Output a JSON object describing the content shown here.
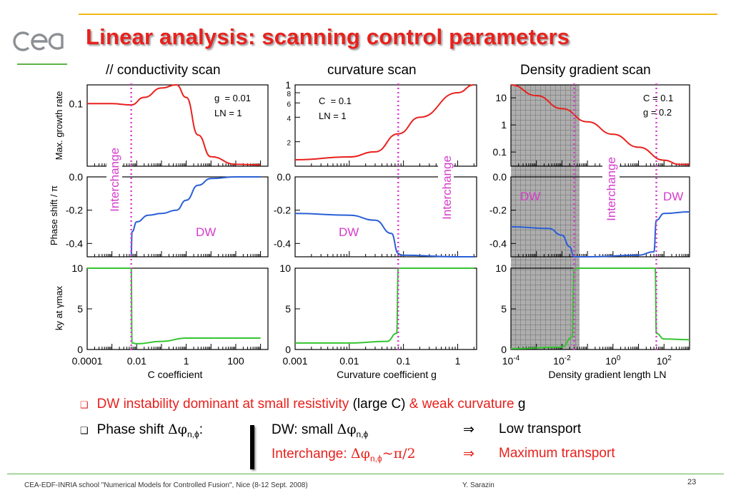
{
  "slide": {
    "title": "Linear analysis: scanning control parameters",
    "logo_text": "cea",
    "accent_color": "#f2b818",
    "logo_color": "#8c8f93",
    "green_rule_color": "#5cb347"
  },
  "columns": [
    {
      "title": "// conductivity scan"
    },
    {
      "title": "curvature scan"
    },
    {
      "title": "Density gradient scan"
    }
  ],
  "row_labels": [
    "Max. growth rate",
    "Phase shift / π",
    "ky at γmax"
  ],
  "xlabels": [
    "C coefficient",
    "Curvature coefficient g",
    "Density gradient length LN"
  ],
  "annotations": {
    "conductivity": {
      "params": [
        "g  = 0.01",
        "LN = 1"
      ],
      "regime_left": "Interchange",
      "regime_right": "DW"
    },
    "curvature": {
      "params": [
        "C  = 0.1",
        "LN = 1"
      ],
      "regime_left": "DW",
      "regime_right": "Interchange"
    },
    "density": {
      "params": [
        "C = 0.1",
        "g = 0.2"
      ],
      "regime_left": "DW",
      "regime_mid": "Interchange",
      "regime_right": "DW"
    }
  },
  "chart_data": [
    {
      "type": "line",
      "title": "// conductivity scan",
      "xlabel": "C coefficient",
      "xscale": "log",
      "xticks": [
        "0.0001",
        "0.01",
        "1",
        "100"
      ],
      "threshold_x": 0.006,
      "panels": [
        {
          "ylabel": "Max. growth rate",
          "color": "#e8211d",
          "yticks": [
            "0.1"
          ],
          "ylim": [
            0,
            0.13
          ],
          "x": [
            0.0001,
            0.001,
            0.006,
            0.02,
            0.1,
            0.4,
            1,
            3,
            10,
            100,
            1000
          ],
          "y": [
            0.1,
            0.1,
            0.098,
            0.11,
            0.125,
            0.13,
            0.11,
            0.05,
            0.015,
            0.003,
            0.002
          ]
        },
        {
          "ylabel": "Phase shift / π",
          "color": "#2a5fd6",
          "yticks": [
            "0.0",
            "-0.2",
            "-0.4"
          ],
          "ylim": [
            -0.48,
            0
          ],
          "x": [
            0.006,
            0.0065,
            0.01,
            0.03,
            0.1,
            0.4,
            1,
            3,
            10,
            100,
            1000
          ],
          "y": [
            -0.47,
            -0.33,
            -0.27,
            -0.23,
            -0.22,
            -0.2,
            -0.14,
            -0.05,
            -0.01,
            0.0,
            0.0
          ]
        },
        {
          "ylabel": "ky at γmax",
          "color": "#35c431",
          "yticks": [
            "10",
            "5",
            "0"
          ],
          "ylim": [
            0,
            10
          ],
          "x": [
            0.0001,
            0.005,
            0.006,
            0.0065,
            0.01,
            0.1,
            1,
            10,
            100,
            1000
          ],
          "y": [
            10,
            10,
            10,
            0.8,
            0.7,
            1.0,
            1.4,
            1.4,
            1.4,
            1.4
          ]
        }
      ]
    },
    {
      "type": "line",
      "title": "curvature scan",
      "xlabel": "Curvature coefficient g",
      "xscale": "log",
      "xticks": [
        "0.001",
        "0.01",
        "0.1",
        "1"
      ],
      "threshold_x": 0.08,
      "panels": [
        {
          "ylabel": "",
          "color": "#e8211d",
          "yticks": [
            "1",
            "8",
            "6",
            "4",
            "2"
          ],
          "ylim": [
            0.1,
            1
          ],
          "x": [
            0.001,
            0.01,
            0.03,
            0.08,
            0.2,
            1,
            2
          ],
          "y": [
            0.12,
            0.13,
            0.15,
            0.25,
            0.4,
            0.8,
            1.0
          ]
        },
        {
          "ylabel": "",
          "color": "#2a5fd6",
          "yticks": [
            "0.0",
            "-0.2",
            "-0.4"
          ],
          "ylim": [
            -0.48,
            0
          ],
          "x": [
            0.001,
            0.01,
            0.03,
            0.06,
            0.08,
            0.09,
            1,
            2
          ],
          "y": [
            -0.22,
            -0.23,
            -0.26,
            -0.34,
            -0.46,
            -0.47,
            -0.48,
            -0.48
          ]
        },
        {
          "ylabel": "",
          "color": "#35c431",
          "yticks": [
            "10",
            "5",
            "0"
          ],
          "ylim": [
            0,
            10
          ],
          "x": [
            0.001,
            0.01,
            0.05,
            0.075,
            0.08,
            0.085,
            1,
            2
          ],
          "y": [
            0.8,
            0.8,
            1.0,
            2.0,
            10,
            10,
            10,
            10
          ]
        }
      ]
    },
    {
      "type": "line",
      "title": "Density gradient scan",
      "xlabel": "Density gradient length LN",
      "xscale": "log",
      "xticks": [
        "10-4",
        "10-2",
        "100",
        "102"
      ],
      "threshold_x": [
        0.03,
        50
      ],
      "panels": [
        {
          "ylabel": "",
          "color": "#e8211d",
          "yticks": [
            "10",
            "1",
            "0.1"
          ],
          "ylim": [
            0.03,
            30
          ],
          "x": [
            0.0001,
            0.001,
            0.01,
            0.1,
            1,
            10,
            100,
            400,
            1000
          ],
          "y": [
            30,
            12,
            4,
            1.3,
            0.45,
            0.15,
            0.05,
            0.035,
            0.035
          ]
        },
        {
          "ylabel": "",
          "color": "#2a5fd6",
          "yticks": [
            "0.0",
            "-0.2",
            "-0.4"
          ],
          "ylim": [
            -0.48,
            0
          ],
          "x": [
            0.0001,
            0.003,
            0.01,
            0.02,
            0.03,
            0.1,
            10,
            40,
            50,
            100,
            1000
          ],
          "y": [
            -0.3,
            -0.31,
            -0.35,
            -0.42,
            -0.48,
            -0.48,
            -0.47,
            -0.45,
            -0.26,
            -0.22,
            -0.21
          ]
        },
        {
          "ylabel": "",
          "color": "#35c431",
          "yticks": [
            "10",
            "5",
            "0"
          ],
          "ylim": [
            0,
            10
          ],
          "x": [
            0.0001,
            0.01,
            0.025,
            0.03,
            0.032,
            40,
            45,
            50,
            100,
            1000
          ],
          "y": [
            0.1,
            0.3,
            1.5,
            10,
            10,
            10,
            10,
            2.0,
            1.3,
            1.2
          ]
        }
      ]
    }
  ],
  "bullets": {
    "b1": {
      "part1": "DW instability dominant at small resistivity",
      "part2": " (large C) ",
      "part3": "& weak curvature",
      "part4": " g"
    },
    "b2": {
      "label": "Phase shift",
      "phi": "Δφ",
      "sub": "n,ϕ",
      "colon": ":"
    },
    "dw_row": {
      "label": "DW: small ",
      "phi": "Δφ",
      "sub": "n,ϕ",
      "arrow": "⇒",
      "result": "Low transport"
    },
    "ic_row": {
      "label": "Interchange: ",
      "phi": "Δφ",
      "sub": "n,ϕ",
      "tail": "~π/2",
      "arrow": "⇒",
      "result": "Maximum transport"
    }
  },
  "footer": {
    "left": "CEA-EDF-INRIA school \"Numerical Models for Controlled Fusion\", Nice (8-12 Sept. 2008)",
    "author": "Y. Sarazin",
    "page": "23"
  }
}
